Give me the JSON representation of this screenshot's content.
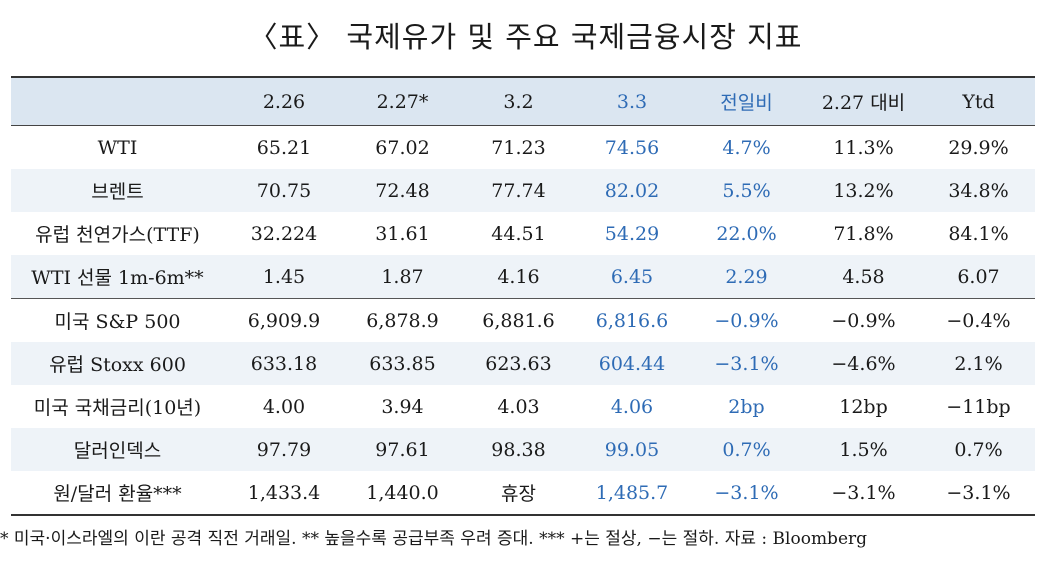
{
  "title": "〈표〉 국제유가 및 주요 국제금융시장 지표",
  "header": [
    "",
    "2.26",
    "2.27*",
    "3.2",
    "3.3",
    "전일비",
    "2.27 대비",
    "Ytd"
  ],
  "rows": [
    [
      "WTI",
      "65.21",
      "67.02",
      "71.23",
      "74.56",
      "4.7%",
      "11.3%",
      "29.9%"
    ],
    [
      "브렌트",
      "70.75",
      "72.48",
      "77.74",
      "82.02",
      "5.5%",
      "13.2%",
      "34.8%"
    ],
    [
      "유럽 천연가스(TTF)",
      "32.224",
      "31.61",
      "44.51",
      "54.29",
      "22.0%",
      "71.8%",
      "84.1%"
    ],
    [
      "WTI 선물 1m-6m**",
      "1.45",
      "1.87",
      "4.16",
      "6.45",
      "2.29",
      "4.58",
      "6.07"
    ],
    [
      "미국 S&P 500",
      "6,909.9",
      "6,878.9",
      "6,881.6",
      "6,816.6",
      "−0.9%",
      "−0.9%",
      "−0.4%"
    ],
    [
      "유럽 Stoxx 600",
      "633.18",
      "633.85",
      "623.63",
      "604.44",
      "−3.1%",
      "−4.6%",
      "2.1%"
    ],
    [
      "미국 국채금리(10년)",
      "4.00",
      "3.94",
      "4.03",
      "4.06",
      "2bp",
      "12bp",
      "−11bp"
    ],
    [
      "달러인덱스",
      "97.79",
      "97.61",
      "98.38",
      "99.05",
      "0.7%",
      "1.5%",
      "0.7%"
    ],
    [
      "원/달러 환율***",
      "1,433.4",
      "1,440.0",
      "휴장",
      "1,485.7",
      "−3.1%",
      "−3.1%",
      "−3.1%"
    ]
  ],
  "footnote": "* 미국·이스라엘의 이란 공격 직전 거래일. ** 높을수록 공급부족 우려 증대. *** +는 절상, −는 절하. 자료 : Bloomberg",
  "colors": {
    "header_bg": "#dbe6f1",
    "shaded_row_bg": "#eef3f8",
    "highlight_text": "#2e6bb5"
  }
}
